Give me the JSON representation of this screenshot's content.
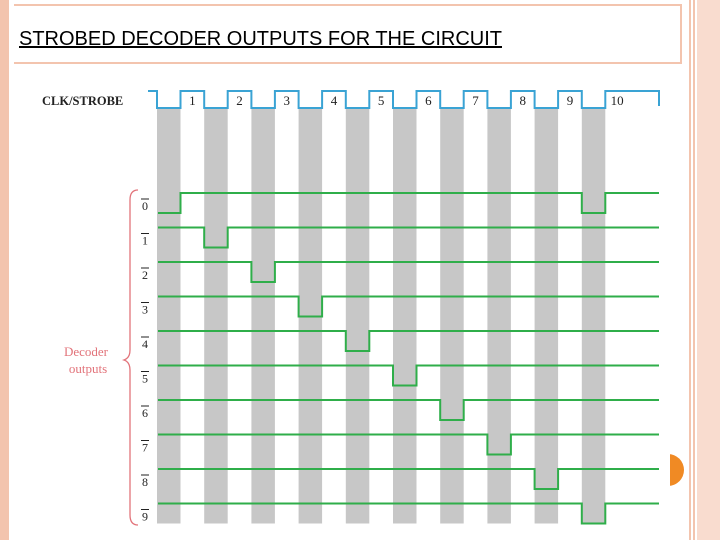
{
  "slide": {
    "title": "STROBED DECODER OUTPUTS FOR THE CIRCUIT"
  },
  "diagram": {
    "clock_label": "CLK/STROBE",
    "pulse_labels": [
      "1",
      "2",
      "3",
      "4",
      "5",
      "6",
      "7",
      "8",
      "9",
      "10"
    ],
    "group_label_line1": "Decoder",
    "group_label_line2": "outputs",
    "output_labels": [
      "0",
      "1",
      "2",
      "3",
      "4",
      "5",
      "6",
      "7",
      "8",
      "9"
    ],
    "output_active_pulses": [
      [
        1,
        10
      ],
      [
        2
      ],
      [
        3
      ],
      [
        4
      ],
      [
        5
      ],
      [
        6
      ],
      [
        7
      ],
      [
        8
      ],
      [
        9
      ],
      [
        10
      ]
    ],
    "colors": {
      "clock": "#3aa3d4",
      "outputs": "#2fae4a",
      "strobe_shade": "#c7c7c7",
      "label_accent": "#e2737a",
      "text": "#222222"
    }
  }
}
